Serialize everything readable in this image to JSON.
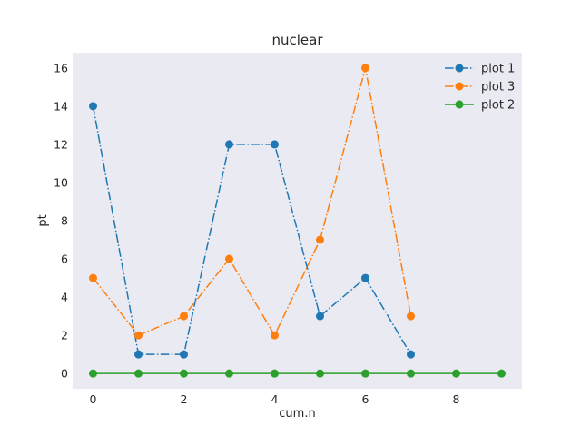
{
  "chart_data": {
    "type": "line",
    "title": "nuclear",
    "xlabel": "cum.n",
    "ylabel": "pt",
    "xlim": [
      -0.45,
      9.45
    ],
    "ylim": [
      -0.8,
      16.8
    ],
    "xticks": [
      0,
      2,
      4,
      6,
      8
    ],
    "yticks": [
      0,
      2,
      4,
      6,
      8,
      10,
      12,
      14,
      16
    ],
    "grid": false,
    "background": "#eaeaf2",
    "legend_position": "top-right",
    "series": [
      {
        "name": "plot 1",
        "color": "#1f77b4",
        "linestyle": "dashdot",
        "marker": "circle",
        "x": [
          0,
          1,
          2,
          3,
          4,
          5,
          6,
          7
        ],
        "y": [
          14,
          1,
          1,
          12,
          12,
          3,
          5,
          1
        ]
      },
      {
        "name": "plot 3",
        "color": "#ff7f0e",
        "linestyle": "dashdot",
        "marker": "circle",
        "x": [
          0,
          1,
          2,
          3,
          4,
          5,
          6,
          7
        ],
        "y": [
          5,
          2,
          3,
          6,
          2,
          7,
          16,
          3
        ]
      },
      {
        "name": "plot 2",
        "color": "#2ca02c",
        "linestyle": "solid",
        "marker": "circle",
        "x": [
          0,
          1,
          2,
          3,
          4,
          5,
          6,
          7,
          8,
          9
        ],
        "y": [
          0,
          0,
          0,
          0,
          0,
          0,
          0,
          0,
          0,
          0
        ]
      }
    ]
  }
}
